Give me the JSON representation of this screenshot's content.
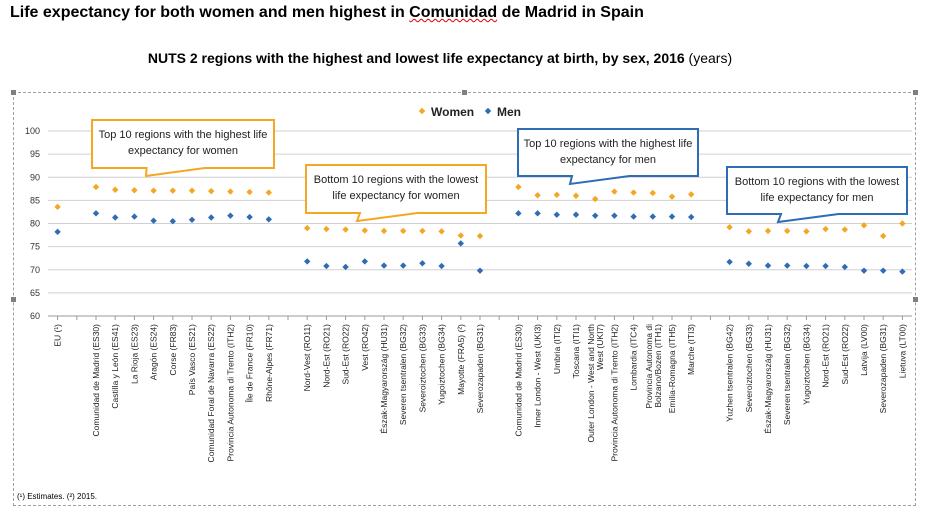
{
  "headline": {
    "before": "Life expectancy for both women and men highest in ",
    "squiggle": "Comunidad",
    "after": " de Madrid in Spain"
  },
  "subtitle": {
    "main": "NUTS 2 regions with the highest and lowest life expectancy at birth, by sex, 2016",
    "unit": " (years)"
  },
  "footnote": "(¹) Estimates. (²) 2015.",
  "colors": {
    "women": "#f5a623",
    "men": "#2e6db5",
    "callout_orange": "#f5a623",
    "callout_blue": "#2e6db5",
    "grid": "#d0d0d0"
  },
  "chart_data": {
    "type": "scatter",
    "ylim": [
      60,
      100
    ],
    "yticks": [
      60,
      65,
      70,
      75,
      80,
      85,
      90,
      95,
      100
    ],
    "grid": true,
    "legend": "top-center",
    "series": [
      {
        "name": "Women",
        "marker": "diamond",
        "color": "#f5a623"
      },
      {
        "name": "Men",
        "marker": "diamond",
        "color": "#2e6db5"
      }
    ],
    "categories": [
      "EU (¹)",
      "",
      "Comunidad de Madrid (ES30)",
      "Castilla y León (ES41)",
      "La Rioja (ES23)",
      "Aragón (ES24)",
      "Corse (FR83)",
      "País Vasco (ES21)",
      "Comunidad Foral de Navarra (ES22)",
      "Provincia Autonoma di Trento (ITH2)",
      "Île de France (FR10)",
      "Rhône-Alpes (FR71)",
      "",
      "Nord-Vest (RO11)",
      "Nord-Est (RO21)",
      "Sud-Est (RO22)",
      "Vest (RO42)",
      "Észak-Magyarország (HU31)",
      "Severen tsentralen (BG32)",
      "Severoiztochen (BG33)",
      "Yugoiztochen (BG34)",
      "Mayotte (FRA5) (²)",
      "Severozapaden (BG31)",
      "",
      "Comunidad de Madrid (ES30)",
      "Inner London - West (UKI3)",
      "Umbria (ITI2)",
      "Toscana (ITI1)",
      "Outer London - West and North West (UKI7)",
      "Provincia Autonoma di Trento (ITH2)",
      "Lombardia (ITC4)",
      "Provincia Autonoma di Bolzano/Bozen (ITH1)",
      "Emilia-Romagna (ITH5)",
      "Marche (ITI3)",
      "",
      "Yuzhen tsentralen (BG42)",
      "Severoiztochen (BG33)",
      "Észak-Magyarország (HU31)",
      "Severen tsentralen (BG32)",
      "Yugoiztochen (BG34)",
      "Nord-Est (RO21)",
      "Sud-Est (RO22)",
      "Latvija (LV00)",
      "Severozapaden (BG31)",
      "Lietuva (LT00)"
    ],
    "women": [
      83.6,
      null,
      87.9,
      87.3,
      87.2,
      87.1,
      87.1,
      87.1,
      87.0,
      86.9,
      86.8,
      86.7,
      null,
      79.0,
      78.8,
      78.7,
      78.5,
      78.4,
      78.4,
      78.4,
      78.3,
      77.4,
      77.3,
      null,
      87.9,
      86.1,
      86.2,
      86.0,
      85.3,
      86.9,
      86.7,
      86.6,
      85.8,
      86.3,
      null,
      79.2,
      78.3,
      78.4,
      78.4,
      78.3,
      78.8,
      78.7,
      79.6,
      77.3,
      80.0
    ],
    "men": [
      78.2,
      null,
      82.2,
      81.3,
      81.5,
      80.6,
      80.5,
      80.8,
      81.3,
      81.7,
      81.4,
      80.9,
      null,
      71.8,
      70.8,
      70.6,
      71.8,
      70.9,
      70.9,
      71.4,
      70.8,
      75.7,
      69.8,
      null,
      82.2,
      82.2,
      81.9,
      81.9,
      81.7,
      81.7,
      81.5,
      81.5,
      81.5,
      81.4,
      null,
      71.7,
      71.3,
      70.9,
      70.9,
      70.8,
      70.8,
      70.6,
      69.8,
      69.8,
      69.6
    ],
    "callouts": [
      {
        "text": "Top 10 regions with the highest life expectancy for women",
        "lines": [
          "Top 10 regions with the highest life",
          "expectancy for women"
        ],
        "style": "orange"
      },
      {
        "text": "Bottom 10 regions with the lowest life expectancy for women",
        "lines": [
          "Bottom 10 regions with the lowest",
          "life expectancy for women"
        ],
        "style": "orange"
      },
      {
        "text": "Top 10 regions with the highest life expectancy for men",
        "lines": [
          "Top 10 regions with the highest life",
          "expectancy for men"
        ],
        "style": "blue"
      },
      {
        "text": "Bottom 10 regions with the lowest life expectancy for men",
        "lines": [
          "Bottom 10 regions with the lowest",
          "life expectancy for men"
        ],
        "style": "blue"
      }
    ]
  }
}
